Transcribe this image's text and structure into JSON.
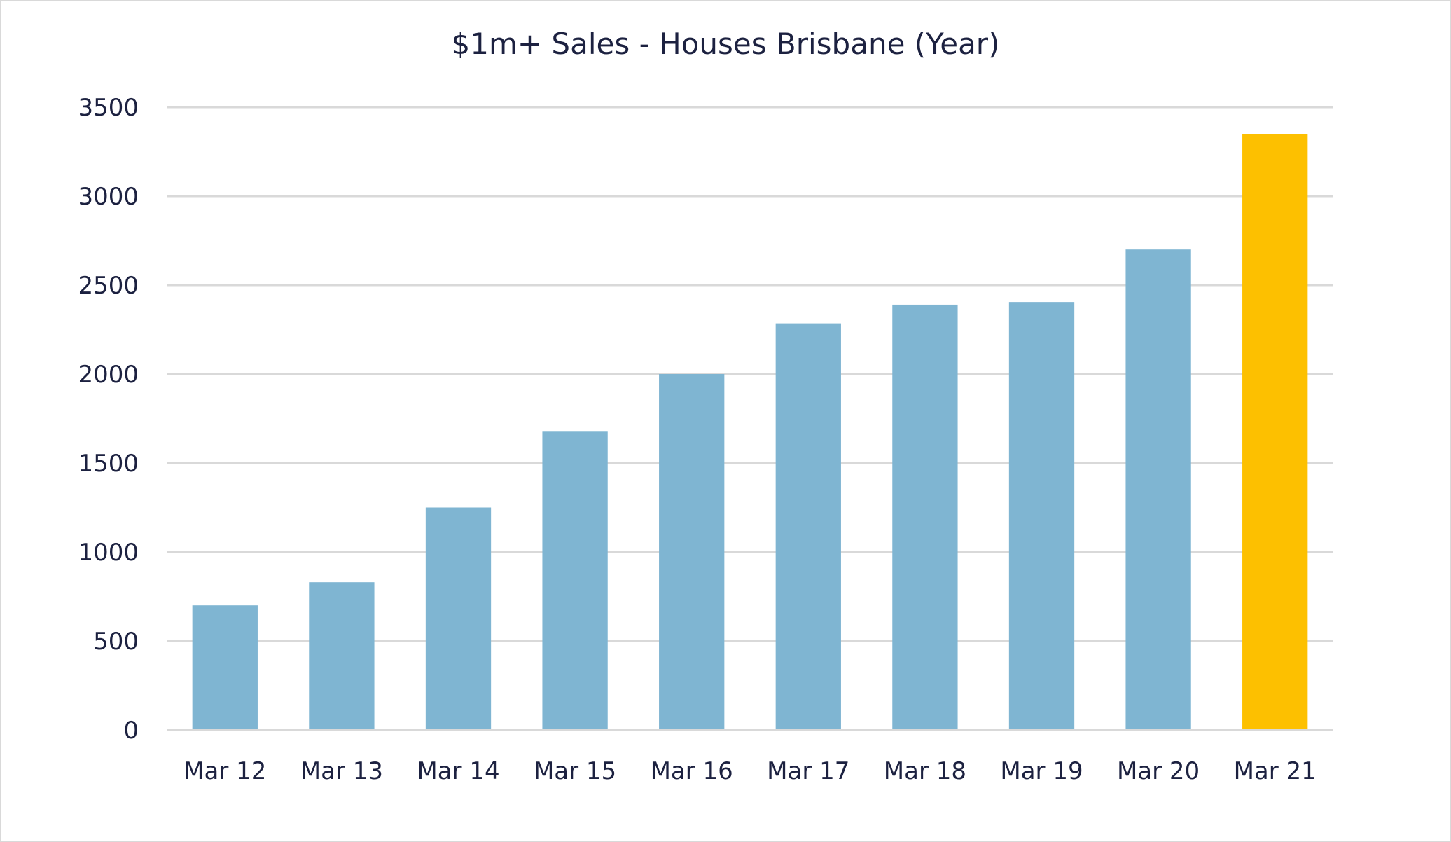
{
  "chart_data": {
    "type": "bar",
    "title": "$1m+ Sales - Houses Brisbane (Year)",
    "xlabel": "",
    "ylabel": "",
    "categories": [
      "Mar 12",
      "Mar 13",
      "Mar 14",
      "Mar 15",
      "Mar 16",
      "Mar 17",
      "Mar 18",
      "Mar 19",
      "Mar 20",
      "Mar 21"
    ],
    "values": [
      700,
      830,
      1250,
      1680,
      2000,
      2285,
      2390,
      2405,
      2700,
      3350
    ],
    "ylim": [
      0,
      3500
    ],
    "yticks": [
      "0",
      "500",
      "1000",
      "1500",
      "2000",
      "2500",
      "3000",
      "3500"
    ],
    "grid": true,
    "legend": "none",
    "colors": {
      "bar": "#7fb5d2",
      "highlight": "#fdc000",
      "grid": "#d9d9d9",
      "text": "#1c2140"
    },
    "highlight_index": 9
  }
}
